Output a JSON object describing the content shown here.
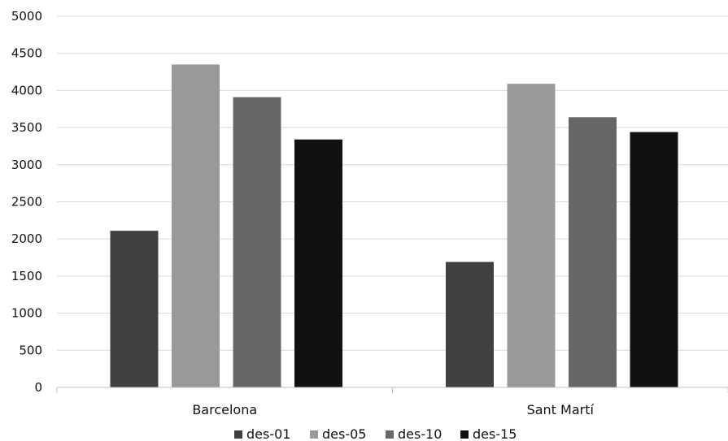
{
  "chart_data": {
    "type": "bar",
    "title": "",
    "xlabel": "",
    "ylabel": "",
    "categories": [
      "Barcelona",
      "Sant Martí"
    ],
    "series": [
      {
        "name": "des-01",
        "values": [
          2110,
          1690
        ]
      },
      {
        "name": "des-05",
        "values": [
          4350,
          4090
        ]
      },
      {
        "name": "des-10",
        "values": [
          3910,
          3640
        ]
      },
      {
        "name": "des-15",
        "values": [
          3340,
          3440
        ]
      }
    ],
    "ylim": [
      0,
      5000
    ],
    "yticks": [
      "0",
      "500",
      "1000",
      "1500",
      "2000",
      "2500",
      "3000",
      "3500",
      "4000",
      "4500",
      "5000"
    ],
    "grid": true,
    "legend_position": "bottom",
    "colors": [
      "#404040",
      "#999999",
      "#676767",
      "#111111"
    ]
  }
}
